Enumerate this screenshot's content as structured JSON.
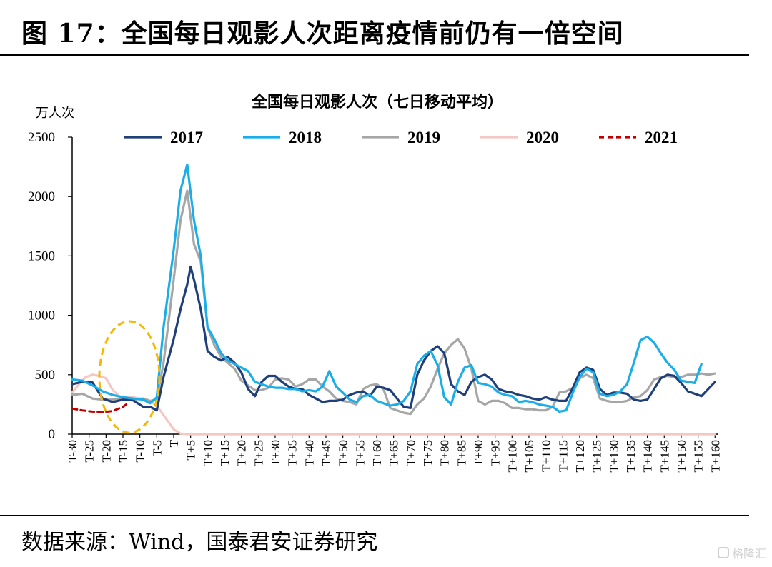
{
  "figure": {
    "title": "图 17：全国每日观影人次距离疫情前仍有一倍空间",
    "source": "数据来源：Wind，国泰君安证券研究",
    "watermark": "格隆汇"
  },
  "chart_data": {
    "type": "line",
    "title": "全国每日观影人次（七日移动平均）",
    "ylabel": "万人次",
    "xlabel": "",
    "ylim": [
      0,
      2500
    ],
    "yticks": [
      0,
      500,
      1000,
      1500,
      2000,
      2500
    ],
    "xlim": [
      -30,
      161
    ],
    "xticks": [
      "T-30",
      "T-25",
      "T-20",
      "T-15",
      "T-10",
      "T-5",
      "T",
      "T+5",
      "T+10",
      "T+15",
      "T+20",
      "T+25",
      "T+30",
      "T+35",
      "T+40",
      "T+45",
      "T+50",
      "T+55",
      "T+60",
      "T+65",
      "T+70",
      "T+75",
      "T+80",
      "T+85",
      "T+90",
      "T+95",
      "T+100",
      "T+105",
      "T+110",
      "T+115",
      "T+120",
      "T+125",
      "T+130",
      "T+135",
      "T+140",
      "T+145",
      "T+150",
      "T+155",
      "T+160"
    ],
    "grid": false,
    "legend_position": "top",
    "annotation": "dashed ellipse highlighting T-18 to T-5",
    "series": [
      {
        "name": "2017",
        "color": "#1f3f7a",
        "dash": "solid",
        "points": [
          [
            -30,
            420
          ],
          [
            -27,
            440
          ],
          [
            -24,
            435
          ],
          [
            -21,
            300
          ],
          [
            -18,
            270
          ],
          [
            -15,
            290
          ],
          [
            -12,
            285
          ],
          [
            -9,
            230
          ],
          [
            -7,
            230
          ],
          [
            -5,
            200
          ],
          [
            -3,
            480
          ],
          [
            0,
            800
          ],
          [
            2,
            1050
          ],
          [
            4,
            1260
          ],
          [
            5,
            1410
          ],
          [
            6,
            1300
          ],
          [
            8,
            1050
          ],
          [
            10,
            700
          ],
          [
            12,
            650
          ],
          [
            14,
            620
          ],
          [
            16,
            650
          ],
          [
            18,
            600
          ],
          [
            20,
            520
          ],
          [
            22,
            380
          ],
          [
            24,
            320
          ],
          [
            26,
            440
          ],
          [
            28,
            490
          ],
          [
            30,
            490
          ],
          [
            32,
            440
          ],
          [
            34,
            400
          ],
          [
            36,
            380
          ],
          [
            38,
            380
          ],
          [
            40,
            330
          ],
          [
            42,
            300
          ],
          [
            44,
            270
          ],
          [
            46,
            280
          ],
          [
            48,
            280
          ],
          [
            50,
            290
          ],
          [
            52,
            330
          ],
          [
            54,
            350
          ],
          [
            56,
            360
          ],
          [
            58,
            320
          ],
          [
            60,
            400
          ],
          [
            62,
            390
          ],
          [
            64,
            370
          ],
          [
            66,
            300
          ],
          [
            68,
            230
          ],
          [
            70,
            220
          ],
          [
            72,
            500
          ],
          [
            74,
            620
          ],
          [
            76,
            700
          ],
          [
            78,
            740
          ],
          [
            80,
            680
          ],
          [
            82,
            420
          ],
          [
            84,
            360
          ],
          [
            86,
            330
          ],
          [
            88,
            440
          ],
          [
            90,
            480
          ],
          [
            92,
            500
          ],
          [
            94,
            460
          ],
          [
            96,
            380
          ],
          [
            98,
            360
          ],
          [
            100,
            350
          ],
          [
            102,
            330
          ],
          [
            104,
            320
          ],
          [
            106,
            300
          ],
          [
            108,
            290
          ],
          [
            110,
            310
          ],
          [
            112,
            290
          ],
          [
            114,
            280
          ],
          [
            116,
            280
          ],
          [
            118,
            390
          ],
          [
            120,
            520
          ],
          [
            122,
            560
          ],
          [
            124,
            540
          ],
          [
            126,
            380
          ],
          [
            128,
            330
          ],
          [
            130,
            350
          ],
          [
            132,
            350
          ],
          [
            134,
            340
          ],
          [
            136,
            290
          ],
          [
            138,
            280
          ],
          [
            140,
            290
          ],
          [
            142,
            380
          ],
          [
            144,
            470
          ],
          [
            146,
            500
          ],
          [
            148,
            490
          ],
          [
            150,
            430
          ],
          [
            152,
            360
          ],
          [
            154,
            340
          ],
          [
            156,
            320
          ],
          [
            158,
            380
          ],
          [
            160,
            440
          ]
        ]
      },
      {
        "name": "2018",
        "color": "#19aee9",
        "dash": "solid",
        "points": [
          [
            -30,
            460
          ],
          [
            -27,
            450
          ],
          [
            -24,
            410
          ],
          [
            -21,
            360
          ],
          [
            -18,
            330
          ],
          [
            -15,
            310
          ],
          [
            -12,
            300
          ],
          [
            -9,
            290
          ],
          [
            -7,
            260
          ],
          [
            -5,
            310
          ],
          [
            -3,
            900
          ],
          [
            0,
            1550
          ],
          [
            2,
            2050
          ],
          [
            4,
            2270
          ],
          [
            6,
            1800
          ],
          [
            8,
            1500
          ],
          [
            10,
            900
          ],
          [
            12,
            800
          ],
          [
            14,
            680
          ],
          [
            16,
            620
          ],
          [
            18,
            590
          ],
          [
            20,
            560
          ],
          [
            22,
            530
          ],
          [
            24,
            440
          ],
          [
            26,
            420
          ],
          [
            28,
            400
          ],
          [
            30,
            390
          ],
          [
            32,
            390
          ],
          [
            34,
            380
          ],
          [
            36,
            380
          ],
          [
            38,
            360
          ],
          [
            40,
            370
          ],
          [
            42,
            360
          ],
          [
            44,
            400
          ],
          [
            46,
            530
          ],
          [
            48,
            400
          ],
          [
            50,
            350
          ],
          [
            52,
            290
          ],
          [
            54,
            270
          ],
          [
            56,
            320
          ],
          [
            58,
            330
          ],
          [
            60,
            280
          ],
          [
            62,
            260
          ],
          [
            64,
            240
          ],
          [
            66,
            250
          ],
          [
            68,
            280
          ],
          [
            70,
            360
          ],
          [
            72,
            590
          ],
          [
            74,
            660
          ],
          [
            76,
            700
          ],
          [
            78,
            580
          ],
          [
            80,
            310
          ],
          [
            82,
            250
          ],
          [
            84,
            440
          ],
          [
            86,
            560
          ],
          [
            88,
            580
          ],
          [
            90,
            430
          ],
          [
            92,
            420
          ],
          [
            94,
            400
          ],
          [
            96,
            350
          ],
          [
            98,
            330
          ],
          [
            100,
            320
          ],
          [
            102,
            270
          ],
          [
            104,
            280
          ],
          [
            106,
            270
          ],
          [
            108,
            250
          ],
          [
            110,
            240
          ],
          [
            112,
            230
          ],
          [
            114,
            190
          ],
          [
            116,
            200
          ],
          [
            118,
            350
          ],
          [
            120,
            480
          ],
          [
            122,
            550
          ],
          [
            124,
            520
          ],
          [
            126,
            340
          ],
          [
            128,
            320
          ],
          [
            130,
            330
          ],
          [
            132,
            360
          ],
          [
            134,
            420
          ],
          [
            136,
            600
          ],
          [
            138,
            790
          ],
          [
            140,
            820
          ],
          [
            142,
            770
          ],
          [
            144,
            680
          ],
          [
            146,
            600
          ],
          [
            148,
            540
          ],
          [
            150,
            450
          ],
          [
            152,
            440
          ],
          [
            154,
            430
          ],
          [
            156,
            590
          ]
        ]
      },
      {
        "name": "2019",
        "color": "#a6a6a6",
        "dash": "solid",
        "points": [
          [
            -30,
            330
          ],
          [
            -27,
            340
          ],
          [
            -24,
            300
          ],
          [
            -21,
            290
          ],
          [
            -18,
            290
          ],
          [
            -15,
            300
          ],
          [
            -12,
            290
          ],
          [
            -9,
            300
          ],
          [
            -7,
            280
          ],
          [
            -5,
            290
          ],
          [
            -3,
            600
          ],
          [
            0,
            1300
          ],
          [
            2,
            1800
          ],
          [
            4,
            2050
          ],
          [
            6,
            1600
          ],
          [
            8,
            1450
          ],
          [
            10,
            900
          ],
          [
            12,
            750
          ],
          [
            14,
            650
          ],
          [
            16,
            600
          ],
          [
            18,
            550
          ],
          [
            20,
            450
          ],
          [
            22,
            410
          ],
          [
            24,
            370
          ],
          [
            26,
            370
          ],
          [
            28,
            390
          ],
          [
            30,
            460
          ],
          [
            32,
            470
          ],
          [
            34,
            460
          ],
          [
            36,
            400
          ],
          [
            38,
            420
          ],
          [
            40,
            460
          ],
          [
            42,
            460
          ],
          [
            44,
            400
          ],
          [
            46,
            360
          ],
          [
            48,
            300
          ],
          [
            50,
            280
          ],
          [
            52,
            270
          ],
          [
            54,
            250
          ],
          [
            56,
            380
          ],
          [
            58,
            410
          ],
          [
            60,
            420
          ],
          [
            62,
            380
          ],
          [
            64,
            220
          ],
          [
            66,
            200
          ],
          [
            68,
            180
          ],
          [
            70,
            170
          ],
          [
            72,
            250
          ],
          [
            74,
            300
          ],
          [
            76,
            400
          ],
          [
            78,
            550
          ],
          [
            80,
            680
          ],
          [
            82,
            750
          ],
          [
            84,
            800
          ],
          [
            86,
            720
          ],
          [
            88,
            550
          ],
          [
            90,
            280
          ],
          [
            92,
            250
          ],
          [
            94,
            280
          ],
          [
            96,
            280
          ],
          [
            98,
            260
          ],
          [
            100,
            220
          ],
          [
            102,
            220
          ],
          [
            104,
            210
          ],
          [
            106,
            210
          ],
          [
            108,
            200
          ],
          [
            110,
            200
          ],
          [
            112,
            230
          ],
          [
            114,
            350
          ],
          [
            116,
            360
          ],
          [
            118,
            390
          ],
          [
            120,
            470
          ],
          [
            122,
            500
          ],
          [
            124,
            470
          ],
          [
            126,
            300
          ],
          [
            128,
            280
          ],
          [
            130,
            270
          ],
          [
            132,
            270
          ],
          [
            134,
            280
          ],
          [
            136,
            310
          ],
          [
            138,
            320
          ],
          [
            140,
            370
          ],
          [
            142,
            460
          ],
          [
            144,
            480
          ],
          [
            146,
            490
          ],
          [
            148,
            480
          ],
          [
            150,
            480
          ],
          [
            152,
            500
          ],
          [
            154,
            500
          ],
          [
            156,
            510
          ],
          [
            158,
            500
          ],
          [
            160,
            510
          ]
        ]
      },
      {
        "name": "2020",
        "color": "#f4c7c3",
        "dash": "solid",
        "points": [
          [
            -30,
            350
          ],
          [
            -28,
            420
          ],
          [
            -26,
            480
          ],
          [
            -24,
            500
          ],
          [
            -22,
            490
          ],
          [
            -20,
            470
          ],
          [
            -18,
            370
          ],
          [
            -16,
            320
          ],
          [
            -14,
            310
          ],
          [
            -12,
            310
          ],
          [
            -10,
            300
          ],
          [
            -8,
            290
          ],
          [
            -6,
            260
          ],
          [
            -4,
            200
          ],
          [
            -2,
            120
          ],
          [
            0,
            40
          ],
          [
            2,
            5
          ],
          [
            4,
            0
          ],
          [
            6,
            0
          ],
          [
            160,
            0
          ]
        ]
      },
      {
        "name": "2021",
        "color": "#c00000",
        "dash": "dashed",
        "points": [
          [
            -30,
            215
          ],
          [
            -27,
            200
          ],
          [
            -24,
            190
          ],
          [
            -21,
            185
          ],
          [
            -18,
            195
          ],
          [
            -15,
            230
          ],
          [
            -14,
            250
          ]
        ]
      }
    ]
  }
}
